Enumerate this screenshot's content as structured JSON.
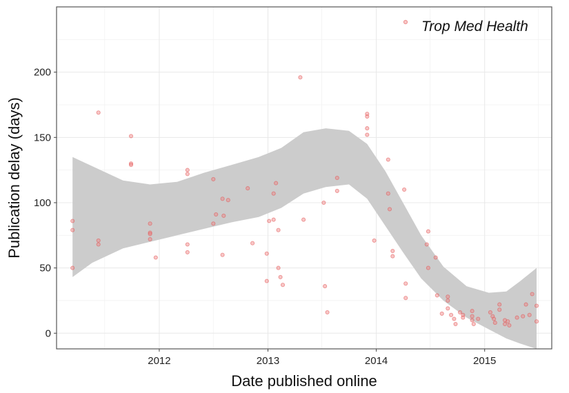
{
  "chart_data": {
    "type": "scatter",
    "title": "",
    "xlabel": "Date published online",
    "ylabel": "Publication delay (days)",
    "x_ticks": [
      "2012",
      "2013",
      "2014",
      "2015"
    ],
    "y_ticks": [
      0,
      50,
      100,
      150,
      200
    ],
    "xlim": [
      "2011-01-20",
      "2015-08-15"
    ],
    "ylim": [
      -12,
      250
    ],
    "grid": true,
    "legend_position": "top-right",
    "series": [
      {
        "name": "Trop Med Health",
        "color": "#f08080",
        "points": [
          {
            "x": "2011-03-15",
            "y": 86
          },
          {
            "x": "2011-03-15",
            "y": 79
          },
          {
            "x": "2011-03-15",
            "y": 50
          },
          {
            "x": "2011-06-10",
            "y": 169
          },
          {
            "x": "2011-06-10",
            "y": 71
          },
          {
            "x": "2011-06-10",
            "y": 68
          },
          {
            "x": "2011-09-28",
            "y": 151
          },
          {
            "x": "2011-09-28",
            "y": 130
          },
          {
            "x": "2011-09-28",
            "y": 129
          },
          {
            "x": "2011-12-01",
            "y": 84
          },
          {
            "x": "2011-12-01",
            "y": 77
          },
          {
            "x": "2011-12-01",
            "y": 76
          },
          {
            "x": "2011-12-01",
            "y": 72
          },
          {
            "x": "2011-12-20",
            "y": 58
          },
          {
            "x": "2012-04-05",
            "y": 125
          },
          {
            "x": "2012-04-05",
            "y": 122
          },
          {
            "x": "2012-04-05",
            "y": 68
          },
          {
            "x": "2012-04-05",
            "y": 62
          },
          {
            "x": "2012-07-01",
            "y": 118
          },
          {
            "x": "2012-07-01",
            "y": 84
          },
          {
            "x": "2012-07-10",
            "y": 91
          },
          {
            "x": "2012-08-01",
            "y": 103
          },
          {
            "x": "2012-08-01",
            "y": 60
          },
          {
            "x": "2012-08-05",
            "y": 90
          },
          {
            "x": "2012-08-20",
            "y": 102
          },
          {
            "x": "2012-10-25",
            "y": 111
          },
          {
            "x": "2012-11-10",
            "y": 69
          },
          {
            "x": "2012-12-28",
            "y": 61
          },
          {
            "x": "2012-12-28",
            "y": 40
          },
          {
            "x": "2013-01-05",
            "y": 86
          },
          {
            "x": "2013-01-20",
            "y": 107
          },
          {
            "x": "2013-01-20",
            "y": 87
          },
          {
            "x": "2013-01-28",
            "y": 115
          },
          {
            "x": "2013-02-05",
            "y": 79
          },
          {
            "x": "2013-02-05",
            "y": 50
          },
          {
            "x": "2013-02-12",
            "y": 43
          },
          {
            "x": "2013-02-20",
            "y": 37
          },
          {
            "x": "2013-04-20",
            "y": 196
          },
          {
            "x": "2013-05-01",
            "y": 87
          },
          {
            "x": "2013-07-08",
            "y": 100
          },
          {
            "x": "2013-07-12",
            "y": 36
          },
          {
            "x": "2013-07-20",
            "y": 16
          },
          {
            "x": "2013-08-22",
            "y": 119
          },
          {
            "x": "2013-08-22",
            "y": 109
          },
          {
            "x": "2013-12-01",
            "y": 168
          },
          {
            "x": "2013-12-01",
            "y": 166
          },
          {
            "x": "2013-12-01",
            "y": 157
          },
          {
            "x": "2013-12-01",
            "y": 152
          },
          {
            "x": "2013-12-25",
            "y": 71
          },
          {
            "x": "2014-02-10",
            "y": 133
          },
          {
            "x": "2014-02-10",
            "y": 107
          },
          {
            "x": "2014-02-15",
            "y": 95
          },
          {
            "x": "2014-02-25",
            "y": 63
          },
          {
            "x": "2014-02-25",
            "y": 59
          },
          {
            "x": "2014-04-05",
            "y": 110
          },
          {
            "x": "2014-04-10",
            "y": 38
          },
          {
            "x": "2014-04-10",
            "y": 27
          },
          {
            "x": "2014-06-20",
            "y": 68
          },
          {
            "x": "2014-06-25",
            "y": 78
          },
          {
            "x": "2014-06-25",
            "y": 50
          },
          {
            "x": "2014-07-20",
            "y": 58
          },
          {
            "x": "2014-07-25",
            "y": 29
          },
          {
            "x": "2014-08-10",
            "y": 15
          },
          {
            "x": "2014-08-30",
            "y": 28
          },
          {
            "x": "2014-08-30",
            "y": 25
          },
          {
            "x": "2014-08-30",
            "y": 19
          },
          {
            "x": "2014-09-10",
            "y": 14
          },
          {
            "x": "2014-09-20",
            "y": 11
          },
          {
            "x": "2014-09-25",
            "y": 7
          },
          {
            "x": "2014-10-10",
            "y": 16
          },
          {
            "x": "2014-10-20",
            "y": 14
          },
          {
            "x": "2014-10-20",
            "y": 12
          },
          {
            "x": "2014-11-20",
            "y": 17
          },
          {
            "x": "2014-11-20",
            "y": 13
          },
          {
            "x": "2014-11-20",
            "y": 10
          },
          {
            "x": "2014-11-25",
            "y": 7
          },
          {
            "x": "2014-12-10",
            "y": 11
          },
          {
            "x": "2015-01-20",
            "y": 16
          },
          {
            "x": "2015-01-28",
            "y": 13
          },
          {
            "x": "2015-02-01",
            "y": 11
          },
          {
            "x": "2015-02-05",
            "y": 8
          },
          {
            "x": "2015-02-20",
            "y": 22
          },
          {
            "x": "2015-02-20",
            "y": 18
          },
          {
            "x": "2015-03-10",
            "y": 10
          },
          {
            "x": "2015-03-10",
            "y": 7
          },
          {
            "x": "2015-03-20",
            "y": 9
          },
          {
            "x": "2015-03-25",
            "y": 6
          },
          {
            "x": "2015-04-20",
            "y": 12
          },
          {
            "x": "2015-05-10",
            "y": 13
          },
          {
            "x": "2015-05-20",
            "y": 22
          },
          {
            "x": "2015-06-01",
            "y": 14
          },
          {
            "x": "2015-06-10",
            "y": 30
          },
          {
            "x": "2015-06-25",
            "y": 21
          },
          {
            "x": "2015-06-25",
            "y": 9
          }
        ]
      }
    ],
    "smooth": {
      "fill_color": "#cccccc",
      "band": [
        {
          "x": "2011-03-15",
          "lo": 43,
          "hi": 135
        },
        {
          "x": "2011-05-20",
          "lo": 54,
          "hi": 128
        },
        {
          "x": "2011-09-01",
          "lo": 65,
          "hi": 117
        },
        {
          "x": "2011-12-01",
          "lo": 70,
          "hi": 114
        },
        {
          "x": "2012-03-01",
          "lo": 75,
          "hi": 116
        },
        {
          "x": "2012-06-01",
          "lo": 80,
          "hi": 123
        },
        {
          "x": "2012-09-01",
          "lo": 85,
          "hi": 129
        },
        {
          "x": "2012-12-01",
          "lo": 89,
          "hi": 135
        },
        {
          "x": "2013-02-15",
          "lo": 96,
          "hi": 142
        },
        {
          "x": "2013-05-01",
          "lo": 107,
          "hi": 154
        },
        {
          "x": "2013-07-15",
          "lo": 112,
          "hi": 157
        },
        {
          "x": "2013-10-01",
          "lo": 114,
          "hi": 155
        },
        {
          "x": "2013-12-01",
          "lo": 103,
          "hi": 145
        },
        {
          "x": "2014-02-01",
          "lo": 82,
          "hi": 124
        },
        {
          "x": "2014-04-01",
          "lo": 62,
          "hi": 100
        },
        {
          "x": "2014-06-01",
          "lo": 42,
          "hi": 75
        },
        {
          "x": "2014-08-15",
          "lo": 25,
          "hi": 51
        },
        {
          "x": "2014-11-01",
          "lo": 12,
          "hi": 36
        },
        {
          "x": "2015-01-15",
          "lo": 3,
          "hi": 31
        },
        {
          "x": "2015-03-15",
          "lo": -4,
          "hi": 32
        },
        {
          "x": "2015-05-01",
          "lo": -8,
          "hi": 40
        },
        {
          "x": "2015-06-25",
          "lo": -12,
          "hi": 50
        }
      ]
    }
  }
}
